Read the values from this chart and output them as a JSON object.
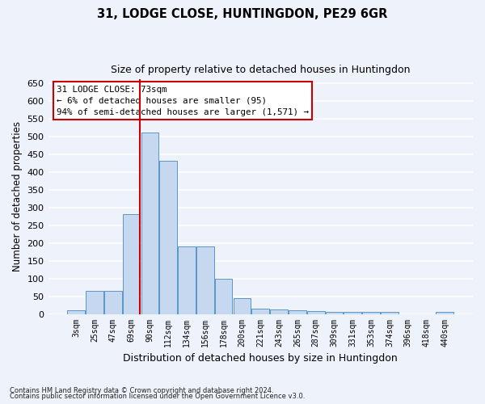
{
  "title1": "31, LODGE CLOSE, HUNTINGDON, PE29 6GR",
  "title2": "Size of property relative to detached houses in Huntingdon",
  "xlabel": "Distribution of detached houses by size in Huntingdon",
  "ylabel": "Number of detached properties",
  "footnote1": "Contains HM Land Registry data © Crown copyright and database right 2024.",
  "footnote2": "Contains public sector information licensed under the Open Government Licence v3.0.",
  "annotation_line1": "31 LODGE CLOSE: 73sqm",
  "annotation_line2": "← 6% of detached houses are smaller (95)",
  "annotation_line3": "94% of semi-detached houses are larger (1,571) →",
  "bar_color": "#c5d8f0",
  "bar_edge_color": "#5a96c8",
  "vline_color": "#cc0000",
  "vline_x_index": 3,
  "categories": [
    "3sqm",
    "25sqm",
    "47sqm",
    "69sqm",
    "90sqm",
    "112sqm",
    "134sqm",
    "156sqm",
    "178sqm",
    "200sqm",
    "221sqm",
    "243sqm",
    "265sqm",
    "287sqm",
    "309sqm",
    "331sqm",
    "353sqm",
    "374sqm",
    "396sqm",
    "418sqm",
    "440sqm"
  ],
  "values": [
    10,
    65,
    65,
    280,
    510,
    430,
    190,
    190,
    100,
    45,
    15,
    12,
    10,
    8,
    5,
    5,
    5,
    5,
    0,
    0,
    5
  ],
  "ylim": [
    0,
    660
  ],
  "yticks": [
    0,
    50,
    100,
    150,
    200,
    250,
    300,
    350,
    400,
    450,
    500,
    550,
    600,
    650
  ],
  "background_color": "#eef2fa",
  "grid_color": "#ffffff",
  "annotation_box_facecolor": "#ffffff",
  "annotation_box_edgecolor": "#cc0000",
  "fig_width": 6.0,
  "fig_height": 5.0,
  "dpi": 100
}
